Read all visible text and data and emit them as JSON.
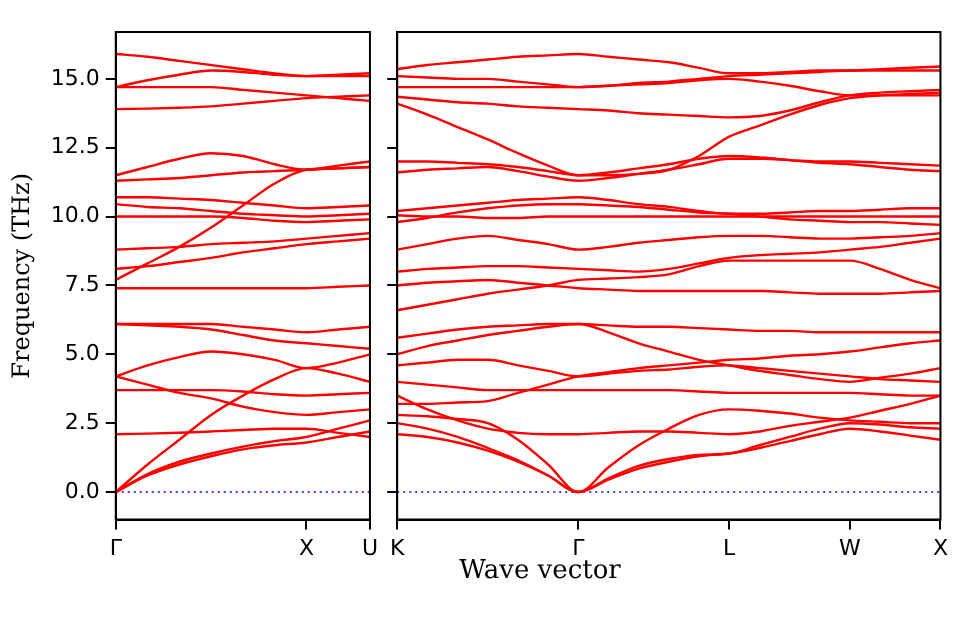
{
  "chart_data": [
    {
      "type": "line",
      "ylabel": "Frequency (THz)",
      "categories": [
        "Γ",
        null,
        null,
        null,
        null,
        null,
        "X",
        null,
        "U"
      ],
      "ylim": [
        -1,
        16.7
      ],
      "yticks": [
        {
          "value": 0,
          "label": "0.0"
        },
        {
          "value": 2.5,
          "label": "2.5"
        },
        {
          "value": 5,
          "label": "5.0"
        },
        {
          "value": 7.5,
          "label": "7.5"
        },
        {
          "value": 10,
          "label": "10.0"
        },
        {
          "value": 12.5,
          "label": "12.5"
        },
        {
          "value": 15,
          "label": "15.0"
        }
      ],
      "ref_lines": [
        {
          "axis": "y",
          "value": 0,
          "color": "#0000ff",
          "line_style": "dotted"
        }
      ],
      "series": [
        {
          "color": "#ff0000",
          "values": [
            0,
            0.6,
            1.0,
            1.3,
            1.55,
            1.7,
            1.8,
            2.0,
            2.2
          ]
        },
        {
          "color": "#ff0000",
          "values": [
            0,
            0.65,
            1.1,
            1.4,
            1.65,
            1.85,
            2.0,
            2.3,
            2.6
          ]
        },
        {
          "color": "#ff0000",
          "values": [
            0,
            1.0,
            1.9,
            2.8,
            3.5,
            4.1,
            4.5,
            4.3,
            4.0
          ]
        },
        {
          "color": "#ff0000",
          "values": [
            2.1,
            2.12,
            2.15,
            2.2,
            2.25,
            2.3,
            2.3,
            2.15,
            2.0
          ]
        },
        {
          "color": "#ff0000",
          "values": [
            3.7,
            3.7,
            3.7,
            3.7,
            3.65,
            3.55,
            3.5,
            3.55,
            3.6
          ]
        },
        {
          "color": "#ff0000",
          "values": [
            4.2,
            4.6,
            4.9,
            5.1,
            5.0,
            4.8,
            4.5,
            4.7,
            5.0
          ]
        },
        {
          "color": "#ff0000",
          "values": [
            4.2,
            3.9,
            3.6,
            3.4,
            3.1,
            2.9,
            2.8,
            2.9,
            3.0
          ]
        },
        {
          "color": "#ff0000",
          "values": [
            6.1,
            6.1,
            6.1,
            6.1,
            6.0,
            5.9,
            5.8,
            5.9,
            6.0
          ]
        },
        {
          "color": "#ff0000",
          "values": [
            6.1,
            6.05,
            6.0,
            5.9,
            5.7,
            5.5,
            5.4,
            5.3,
            5.2
          ]
        },
        {
          "color": "#ff0000",
          "values": [
            7.4,
            7.4,
            7.4,
            7.4,
            7.4,
            7.4,
            7.4,
            7.45,
            7.5
          ]
        },
        {
          "color": "#ff0000",
          "values": [
            7.7,
            8.3,
            8.9,
            9.6,
            10.4,
            11.2,
            11.7,
            11.75,
            11.8
          ]
        },
        {
          "color": "#ff0000",
          "values": [
            8.1,
            8.2,
            8.35,
            8.5,
            8.7,
            8.85,
            9.0,
            9.1,
            9.2
          ]
        },
        {
          "color": "#ff0000",
          "values": [
            8.8,
            8.85,
            8.9,
            9.0,
            9.05,
            9.1,
            9.2,
            9.3,
            9.4
          ]
        },
        {
          "color": "#ff0000",
          "values": [
            10.0,
            10.0,
            10.0,
            10.0,
            9.95,
            9.85,
            9.8,
            9.85,
            9.9
          ]
        },
        {
          "color": "#ff0000",
          "values": [
            10.45,
            10.35,
            10.3,
            10.2,
            10.1,
            10.05,
            10.0,
            10.05,
            10.1
          ]
        },
        {
          "color": "#ff0000",
          "values": [
            10.7,
            10.7,
            10.65,
            10.6,
            10.5,
            10.4,
            10.3,
            10.35,
            10.4
          ]
        },
        {
          "color": "#ff0000",
          "values": [
            11.3,
            11.35,
            11.4,
            11.5,
            11.6,
            11.65,
            11.7,
            11.75,
            11.8
          ]
        },
        {
          "color": "#ff0000",
          "values": [
            11.5,
            11.8,
            12.1,
            12.3,
            12.2,
            11.9,
            11.7,
            11.85,
            12.0
          ]
        },
        {
          "color": "#ff0000",
          "values": [
            13.9,
            13.92,
            13.95,
            14.0,
            14.1,
            14.2,
            14.3,
            14.35,
            14.4
          ]
        },
        {
          "color": "#ff0000",
          "values": [
            14.7,
            14.7,
            14.7,
            14.7,
            14.6,
            14.5,
            14.4,
            14.3,
            14.2
          ]
        },
        {
          "color": "#ff0000",
          "values": [
            14.7,
            14.95,
            15.15,
            15.3,
            15.25,
            15.15,
            15.1,
            15.15,
            15.2
          ]
        },
        {
          "color": "#ff0000",
          "values": [
            15.9,
            15.8,
            15.65,
            15.5,
            15.35,
            15.2,
            15.1,
            15.1,
            15.1
          ]
        }
      ]
    },
    {
      "type": "line",
      "xlabel": "Wave vector",
      "tick_labels": "x",
      "categories": [
        "K",
        null,
        null,
        null,
        null,
        null,
        "Γ",
        null,
        null,
        null,
        null,
        "L",
        null,
        null,
        null,
        "W",
        null,
        null,
        "X"
      ],
      "ylim": [
        -1,
        16.7
      ],
      "yticks": [
        {
          "value": 0,
          "label": null
        },
        {
          "value": 2.5,
          "label": null
        },
        {
          "value": 5,
          "label": null
        },
        {
          "value": 7.5,
          "label": null
        },
        {
          "value": 10,
          "label": null
        },
        {
          "value": 12.5,
          "label": null
        },
        {
          "value": 15,
          "label": null
        }
      ],
      "ref_lines": [
        {
          "axis": "y",
          "value": 0,
          "color": "#0000ff",
          "line_style": "dotted"
        }
      ],
      "series": [
        {
          "color": "#ff0000",
          "values": [
            2.1,
            2.0,
            1.8,
            1.5,
            1.1,
            0.6,
            0,
            0.45,
            0.85,
            1.1,
            1.3,
            1.4,
            1.6,
            1.85,
            2.1,
            2.3,
            2.2,
            2.05,
            1.9
          ]
        },
        {
          "color": "#ff0000",
          "values": [
            2.5,
            2.3,
            2.0,
            1.6,
            1.15,
            0.6,
            0,
            0.5,
            0.95,
            1.2,
            1.35,
            1.4,
            1.7,
            2.0,
            2.3,
            2.5,
            2.45,
            2.35,
            2.3
          ]
        },
        {
          "color": "#ff0000",
          "values": [
            2.8,
            2.75,
            2.65,
            2.5,
            1.9,
            1.0,
            0,
            0.9,
            1.7,
            2.3,
            2.8,
            3.0,
            2.95,
            2.85,
            2.7,
            2.6,
            2.55,
            2.5,
            2.5
          ]
        },
        {
          "color": "#ff0000",
          "values": [
            3.5,
            3.0,
            2.6,
            2.3,
            2.15,
            2.1,
            2.1,
            2.15,
            2.2,
            2.2,
            2.15,
            2.1,
            2.2,
            2.4,
            2.55,
            2.7,
            2.95,
            3.2,
            3.5
          ]
        },
        {
          "color": "#ff0000",
          "values": [
            4.0,
            3.9,
            3.8,
            3.7,
            3.7,
            3.7,
            3.7,
            3.7,
            3.7,
            3.7,
            3.65,
            3.6,
            3.6,
            3.6,
            3.6,
            3.6,
            3.55,
            3.5,
            3.5
          ]
        },
        {
          "color": "#ff0000",
          "values": [
            4.6,
            4.7,
            4.8,
            4.8,
            4.6,
            4.4,
            4.2,
            4.3,
            4.4,
            4.45,
            4.55,
            4.6,
            4.5,
            4.4,
            4.3,
            4.2,
            4.1,
            4.05,
            4.0
          ]
        },
        {
          "color": "#ff0000",
          "values": [
            3.2,
            3.2,
            3.25,
            3.3,
            3.6,
            3.9,
            4.2,
            4.35,
            4.5,
            4.6,
            4.7,
            4.8,
            4.85,
            4.95,
            5.0,
            5.1,
            5.25,
            5.4,
            5.5
          ]
        },
        {
          "color": "#ff0000",
          "values": [
            5.0,
            5.3,
            5.5,
            5.7,
            5.85,
            6.0,
            6.1,
            6.05,
            6.0,
            6.0,
            5.95,
            5.9,
            5.85,
            5.85,
            5.8,
            5.8,
            5.8,
            5.8,
            5.8
          ]
        },
        {
          "color": "#ff0000",
          "values": [
            5.6,
            5.75,
            5.9,
            6.0,
            6.05,
            6.1,
            6.1,
            5.8,
            5.4,
            5.1,
            4.8,
            4.6,
            4.4,
            4.25,
            4.1,
            4.0,
            4.15,
            4.3,
            4.5
          ]
        },
        {
          "color": "#ff0000",
          "values": [
            6.6,
            6.8,
            7.0,
            7.2,
            7.35,
            7.5,
            7.7,
            7.75,
            7.8,
            7.9,
            8.2,
            8.4,
            8.4,
            8.4,
            8.4,
            8.4,
            8.1,
            7.7,
            7.4
          ]
        },
        {
          "color": "#ff0000",
          "values": [
            7.5,
            7.6,
            7.65,
            7.7,
            7.6,
            7.5,
            7.4,
            7.35,
            7.3,
            7.3,
            7.3,
            7.3,
            7.3,
            7.25,
            7.2,
            7.2,
            7.2,
            7.25,
            7.3
          ]
        },
        {
          "color": "#ff0000",
          "values": [
            8.0,
            8.1,
            8.15,
            8.2,
            8.2,
            8.15,
            8.1,
            8.05,
            8.0,
            8.1,
            8.3,
            8.5,
            8.6,
            8.65,
            8.7,
            8.8,
            8.9,
            9.05,
            9.2
          ]
        },
        {
          "color": "#ff0000",
          "values": [
            8.8,
            9.0,
            9.2,
            9.3,
            9.15,
            9.0,
            8.8,
            8.9,
            9.05,
            9.15,
            9.25,
            9.3,
            9.3,
            9.25,
            9.2,
            9.2,
            9.25,
            9.3,
            9.4
          ]
        },
        {
          "color": "#ff0000",
          "values": [
            10.05,
            10.0,
            10.0,
            9.95,
            9.95,
            10.0,
            10.0,
            10.0,
            10.0,
            10.0,
            10.0,
            10.0,
            10.0,
            10.0,
            10.0,
            10.0,
            10.0,
            10.0,
            10.0
          ]
        },
        {
          "color": "#ff0000",
          "values": [
            9.8,
            9.95,
            10.15,
            10.3,
            10.4,
            10.45,
            10.45,
            10.4,
            10.35,
            10.25,
            10.15,
            10.1,
            10.0,
            9.9,
            9.85,
            9.8,
            9.8,
            9.75,
            9.7
          ]
        },
        {
          "color": "#ff0000",
          "values": [
            10.2,
            10.3,
            10.4,
            10.5,
            10.6,
            10.65,
            10.7,
            10.6,
            10.45,
            10.35,
            10.2,
            10.1,
            10.1,
            10.15,
            10.2,
            10.2,
            10.25,
            10.3,
            10.3
          ]
        },
        {
          "color": "#ff0000",
          "values": [
            11.6,
            11.7,
            11.75,
            11.8,
            11.65,
            11.45,
            11.3,
            11.4,
            11.55,
            11.7,
            11.9,
            12.1,
            12.1,
            12.05,
            12.0,
            12.0,
            11.95,
            11.9,
            11.85
          ]
        },
        {
          "color": "#ff0000",
          "values": [
            12.0,
            12.0,
            11.95,
            11.9,
            11.8,
            11.65,
            11.5,
            11.6,
            11.75,
            11.9,
            12.1,
            12.2,
            12.15,
            12.05,
            11.95,
            11.9,
            11.8,
            11.7,
            11.65
          ]
        },
        {
          "color": "#ff0000",
          "values": [
            14.1,
            13.7,
            13.25,
            12.8,
            12.3,
            11.85,
            11.5,
            11.5,
            11.55,
            11.7,
            12.2,
            12.9,
            13.3,
            13.7,
            14.05,
            14.3,
            14.4,
            14.45,
            14.5
          ]
        },
        {
          "color": "#ff0000",
          "values": [
            14.35,
            14.25,
            14.15,
            14.1,
            14.0,
            13.95,
            13.9,
            13.85,
            13.75,
            13.7,
            13.65,
            13.6,
            13.65,
            13.85,
            14.15,
            14.4,
            14.5,
            14.55,
            14.6
          ]
        },
        {
          "color": "#ff0000",
          "values": [
            14.7,
            14.7,
            14.7,
            14.7,
            14.7,
            14.7,
            14.7,
            14.75,
            14.8,
            14.85,
            14.95,
            15.0,
            14.9,
            14.75,
            14.55,
            14.4,
            14.4,
            14.4,
            14.4
          ]
        },
        {
          "color": "#ff0000",
          "values": [
            15.1,
            15.05,
            15.0,
            15.0,
            14.9,
            14.8,
            14.7,
            14.75,
            14.85,
            14.9,
            15.0,
            15.1,
            15.15,
            15.2,
            15.25,
            15.3,
            15.3,
            15.3,
            15.3
          ]
        },
        {
          "color": "#ff0000",
          "values": [
            15.35,
            15.5,
            15.6,
            15.7,
            15.8,
            15.85,
            15.9,
            15.8,
            15.7,
            15.6,
            15.4,
            15.2,
            15.2,
            15.25,
            15.3,
            15.3,
            15.35,
            15.4,
            15.45
          ]
        }
      ]
    }
  ]
}
